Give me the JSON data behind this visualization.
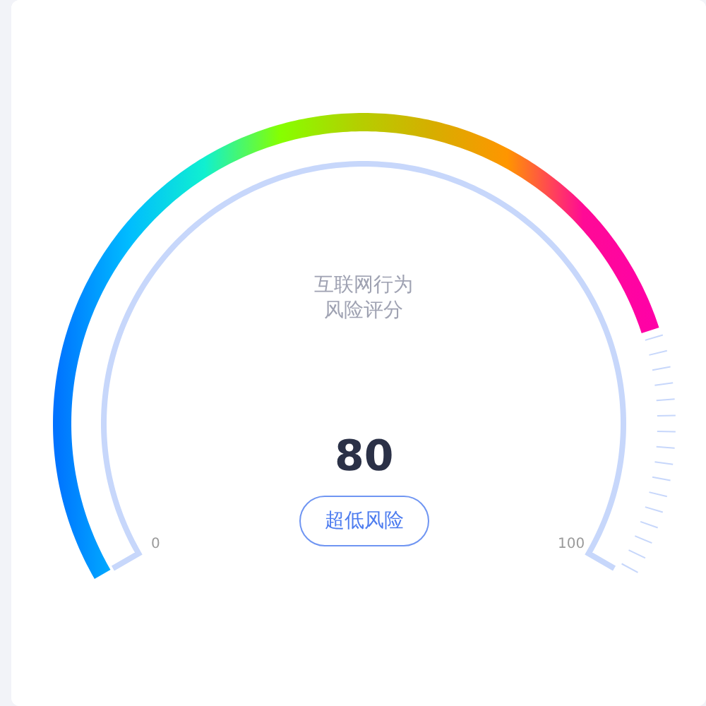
{
  "chart_data": {
    "type": "other",
    "title": "互联网行为风险评分",
    "values": [
      80
    ],
    "data_labels": true,
    "annotations": [
      "超低风险",
      "0",
      "100"
    ]
  }
}
